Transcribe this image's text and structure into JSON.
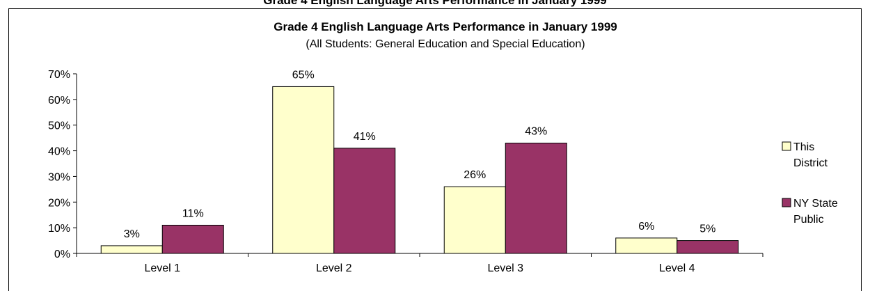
{
  "top_title": "Grade 4 English Language Arts Performance in January 1999",
  "chart_data": {
    "type": "bar",
    "title": "Grade 4 English Language Arts Performance in January 1999",
    "subtitle": "(All Students: General Education and Special Education)",
    "categories": [
      "Level 1",
      "Level 2",
      "Level 3",
      "Level 4"
    ],
    "series": [
      {
        "name": "This District",
        "legend_lines": [
          "This",
          "District"
        ],
        "color": "#ffffcc",
        "values": [
          3,
          65,
          26,
          6
        ],
        "labels": [
          "3%",
          "65%",
          "26%",
          "6%"
        ]
      },
      {
        "name": "NY State Public",
        "legend_lines": [
          "NY State",
          "Public"
        ],
        "color": "#993366",
        "values": [
          11,
          41,
          43,
          5
        ],
        "labels": [
          "11%",
          "41%",
          "43%",
          "5%"
        ]
      }
    ],
    "yticks": [
      "0%",
      "10%",
      "20%",
      "30%",
      "40%",
      "50%",
      "60%",
      "70%"
    ],
    "ylim": [
      0,
      70
    ],
    "grid": false,
    "legend": "right"
  }
}
